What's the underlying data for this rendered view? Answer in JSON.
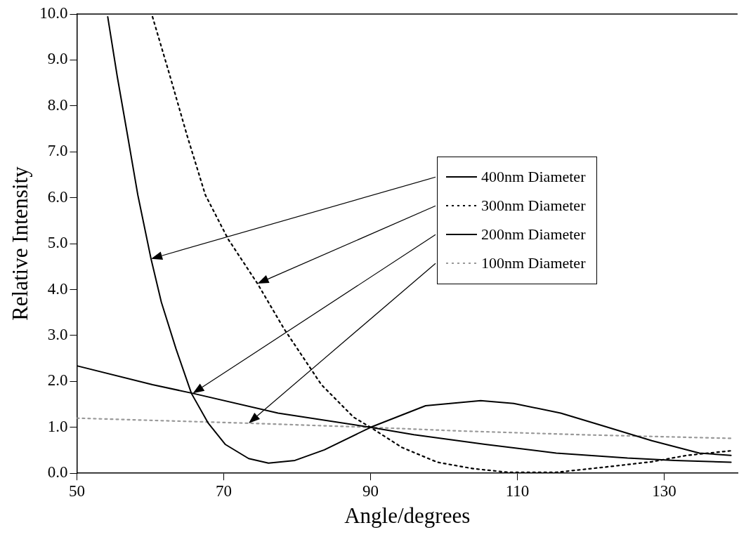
{
  "chart_data": {
    "type": "line",
    "xlabel": "Angle/degrees",
    "ylabel": "Relative Intensity",
    "xlim": [
      50,
      140
    ],
    "xticks": [
      50,
      70,
      90,
      110,
      130
    ],
    "ylim": [
      0,
      10
    ],
    "yticks": [
      {
        "value": 0,
        "label": "0.0"
      },
      {
        "value": 1,
        "label": "1.0"
      },
      {
        "value": 2,
        "label": "2.0"
      },
      {
        "value": 3,
        "label": "3.0"
      },
      {
        "value": 4,
        "label": "4.0"
      },
      {
        "value": 5,
        "label": "5.0"
      },
      {
        "value": 6,
        "label": "6.0"
      },
      {
        "value": 7,
        "label": "7.0"
      },
      {
        "value": 8,
        "label": "8.0"
      },
      {
        "value": 9,
        "label": "9.0"
      },
      {
        "value": 10,
        "label": "10.0"
      }
    ],
    "grid": false,
    "legend": "right",
    "marker": "none",
    "series": [
      {
        "name": "400nm Diameter",
        "color": "#000000",
        "line_style": "solid",
        "x": [
          54.2,
          55.5,
          56.9,
          58.3,
          60.1,
          61.5,
          63.5,
          65.6,
          67.9,
          70.2,
          73.4,
          76.1,
          79.7,
          83.7,
          90,
          97.5,
          105,
          109.5,
          115.9,
          121.7,
          128.3,
          134.8,
          139.1
        ],
        "values": [
          9.94,
          8.64,
          7.36,
          6.06,
          4.67,
          3.73,
          2.71,
          1.74,
          1.09,
          0.63,
          0.32,
          0.22,
          0.28,
          0.51,
          1.0,
          1.47,
          1.58,
          1.52,
          1.31,
          1.03,
          0.71,
          0.44,
          0.39
        ]
      },
      {
        "name": "300nm Diameter",
        "color": "#000000",
        "line_style": "dotted",
        "x": [
          60.3,
          62.7,
          65.0,
          67.5,
          70.6,
          74.6,
          78.2,
          83.3,
          87.7,
          90,
          94.3,
          99.1,
          104,
          108.8,
          115.3,
          121.7,
          128.3,
          133.1,
          139.1
        ],
        "values": [
          9.94,
          8.64,
          7.36,
          6.06,
          5.1,
          4.13,
          3.15,
          1.93,
          1.22,
          1.0,
          0.56,
          0.24,
          0.1,
          0.02,
          0.02,
          0.13,
          0.25,
          0.39,
          0.49
        ]
      },
      {
        "name": "200nm Diameter",
        "color": "#000000",
        "line_style": "solid",
        "x": [
          50,
          60.3,
          65.8,
          77.4,
          90,
          95.9,
          105.6,
          115.3,
          125,
          131.5,
          139.1
        ],
        "values": [
          2.34,
          1.93,
          1.74,
          1.31,
          1.0,
          0.84,
          0.63,
          0.44,
          0.33,
          0.28,
          0.24
        ]
      },
      {
        "name": "100nm Diameter",
        "color": "#999999",
        "line_style": "dotted",
        "x": [
          50,
          73.4,
          90,
          102.3,
          118.5,
          139.1
        ],
        "values": [
          1.2,
          1.09,
          1.0,
          0.92,
          0.84,
          0.76
        ]
      }
    ]
  }
}
